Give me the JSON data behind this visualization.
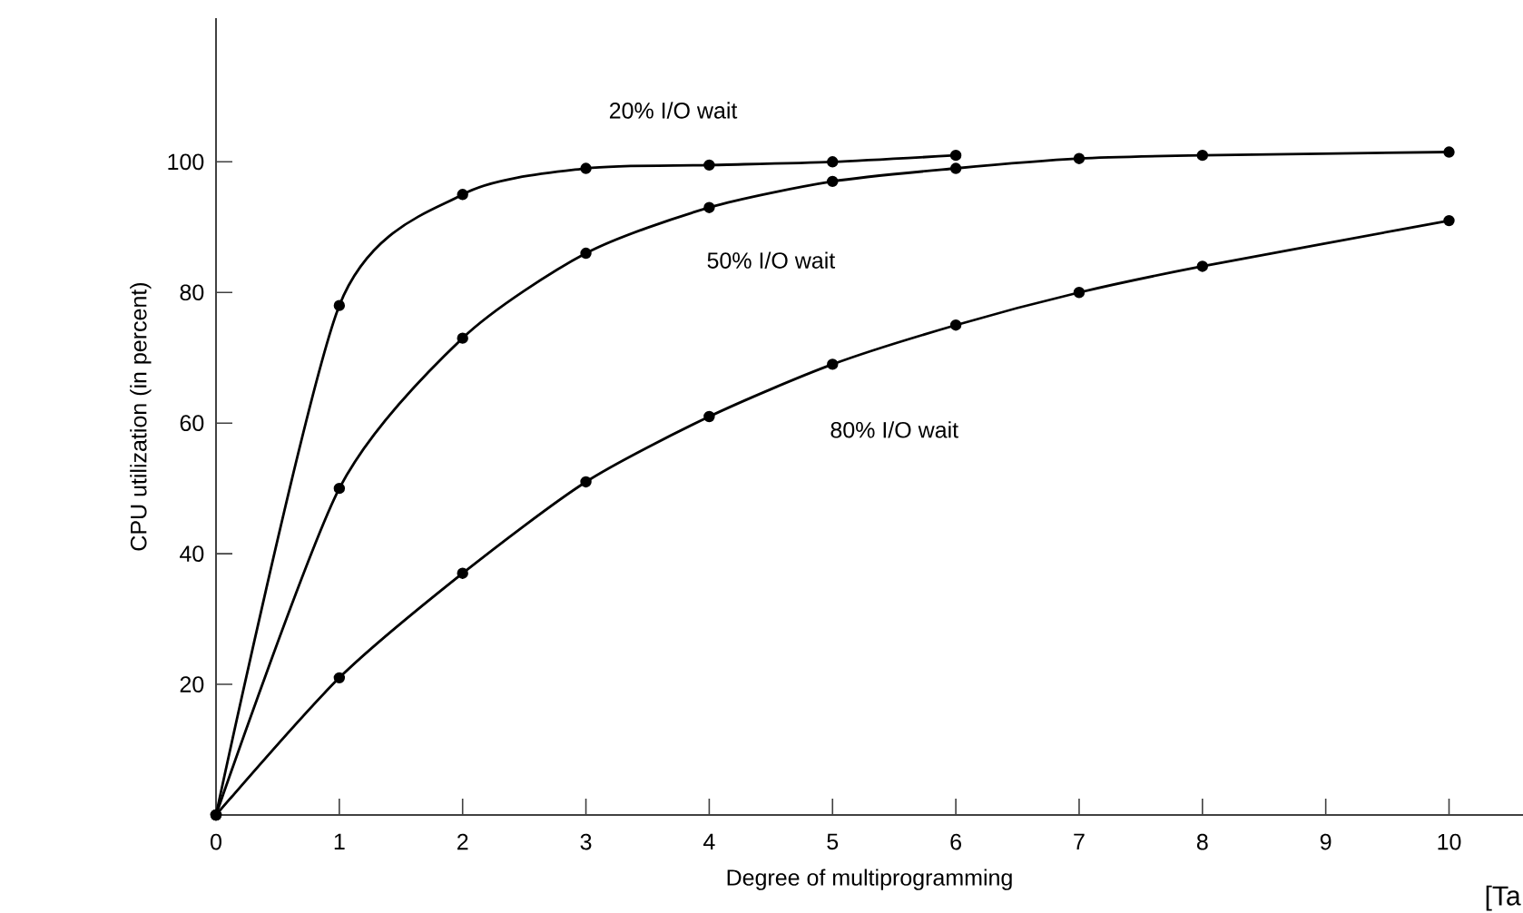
{
  "chart_data": {
    "type": "line",
    "xlabel": "Degree of multiprogramming",
    "ylabel": "CPU utilization (in percent)",
    "series": [
      {
        "name": "20% I/O wait",
        "x": [
          0,
          1,
          2,
          3,
          4,
          5,
          6
        ],
        "values": [
          0,
          78,
          95,
          99,
          99.5,
          100,
          101
        ],
        "color": "#000000"
      },
      {
        "name": "50% I/O wait",
        "x": [
          0,
          1,
          2,
          3,
          4,
          5,
          6,
          7,
          8,
          10
        ],
        "values": [
          0,
          50,
          73,
          86,
          93,
          97,
          99,
          100.5,
          101,
          101.5
        ],
        "color": "#000000"
      },
      {
        "name": "80% I/O wait",
        "x": [
          0,
          1,
          2,
          3,
          4,
          5,
          6,
          7,
          8,
          10
        ],
        "values": [
          0,
          21,
          37,
          51,
          61,
          69,
          75,
          80,
          84,
          91
        ],
        "color": "#000000"
      }
    ],
    "xlim": [
      0,
      10.6
    ],
    "ylim": [
      0,
      122
    ],
    "xticks": [
      0,
      1,
      2,
      3,
      4,
      5,
      6,
      7,
      8,
      9,
      10
    ],
    "yticks": [
      20,
      40,
      60,
      80,
      100
    ],
    "marker": "circle",
    "line_style": "solid",
    "grid": false,
    "legend": false,
    "annotations": [
      "[Ta"
    ]
  }
}
